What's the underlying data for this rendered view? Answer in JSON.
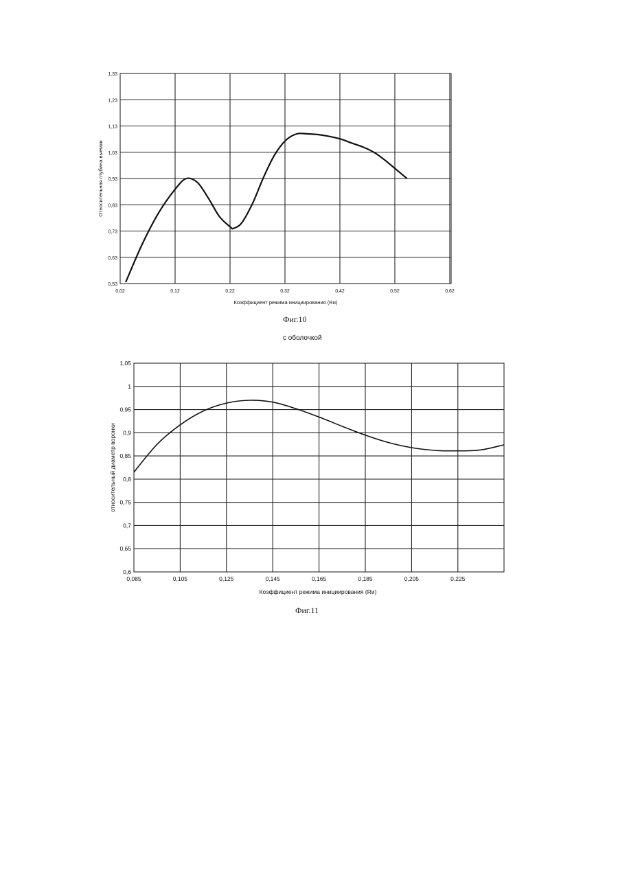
{
  "chart_data": [
    {
      "type": "line",
      "xlabel": "Коэффициент режима инициирования (Rи)",
      "ylabel": "Относительная глубина выемки",
      "x_ticks": [
        "0,02",
        "0,12",
        "0,22",
        "0,32",
        "0,42",
        "0,52",
        "0,62"
      ],
      "y_ticks": [
        "0,53",
        "0,63",
        "0,73",
        "0,83",
        "0,93",
        "1,03",
        "1,13",
        "1,23",
        "1,33"
      ],
      "xlim": [
        0.02,
        0.62
      ],
      "ylim": [
        0.53,
        1.33
      ],
      "grid": true,
      "series": [
        {
          "x": [
            0.03,
            0.06,
            0.09,
            0.12,
            0.14,
            0.16,
            0.18,
            0.2,
            0.22,
            0.225,
            0.24,
            0.26,
            0.28,
            0.3,
            0.32,
            0.34,
            0.36,
            0.38,
            0.4,
            0.42,
            0.44,
            0.46,
            0.48,
            0.5,
            0.52,
            0.54
          ],
          "y": [
            0.535,
            0.68,
            0.8,
            0.89,
            0.93,
            0.915,
            0.855,
            0.785,
            0.745,
            0.74,
            0.76,
            0.835,
            0.935,
            1.02,
            1.075,
            1.1,
            1.1,
            1.097,
            1.09,
            1.08,
            1.065,
            1.05,
            1.03,
            1.0,
            0.965,
            0.93
          ]
        }
      ]
    },
    {
      "type": "line",
      "xlabel": "Коэффициент режима инициирования (Rи)",
      "ylabel": "относительный диаметр воронки",
      "x_ticks": [
        "0,085",
        "0,105",
        "0,125",
        "0,145",
        "0,165",
        "0,185",
        "0,205",
        "0,225"
      ],
      "y_ticks": [
        "0,6",
        "0,65",
        "0,7",
        "0,75",
        "0,8",
        "0,85",
        "0,9",
        "0,95",
        "1",
        "1,05"
      ],
      "xlim": [
        0.085,
        0.245
      ],
      "ylim": [
        0.6,
        1.05
      ],
      "grid": true,
      "series": [
        {
          "x": [
            0.085,
            0.095,
            0.105,
            0.115,
            0.125,
            0.135,
            0.145,
            0.155,
            0.165,
            0.175,
            0.185,
            0.195,
            0.205,
            0.215,
            0.225,
            0.235,
            0.245
          ],
          "y": [
            0.815,
            0.875,
            0.917,
            0.947,
            0.964,
            0.97,
            0.966,
            0.952,
            0.934,
            0.914,
            0.895,
            0.879,
            0.868,
            0.862,
            0.861,
            0.863,
            0.874
          ]
        }
      ]
    }
  ],
  "captions": {
    "fig10": "Фиг.10",
    "fig11_heading": "с оболочкой",
    "fig11": "Фиг.11"
  }
}
